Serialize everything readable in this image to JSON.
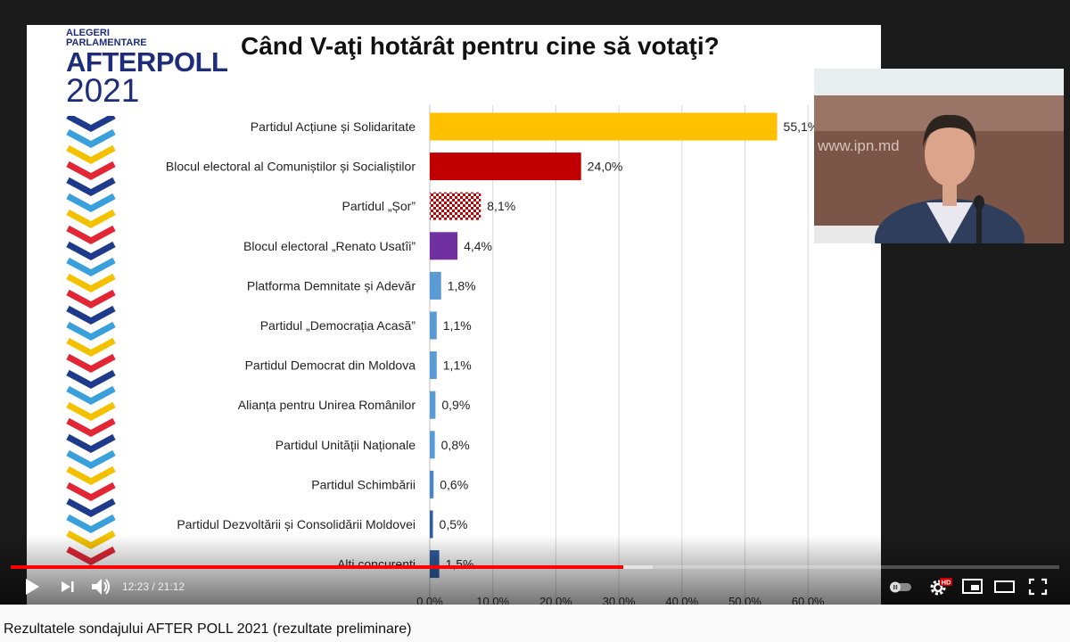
{
  "slide": {
    "logo_line1": "ALEGERI",
    "logo_line2": "PARLAMENTARE",
    "logo_brand": "AFTERPOLL",
    "logo_year": "2021",
    "title": "Când V-aţi hotărât pentru cine să votaţi?"
  },
  "chart_data": {
    "type": "bar",
    "orientation": "horizontal",
    "title": "Când V-aţi hotărât pentru cine să votaţi?",
    "categories": [
      "Partidul Acțiune și Solidaritate",
      "Blocul electoral al Comuniștilor și Socialiștilor",
      "Partidul „Șor”",
      "Blocul electoral „Renato Usatîi”",
      "Platforma Demnitate și Adevăr",
      "Partidul „Democrația Acasă”",
      "Partidul Democrat din Moldova",
      "Alianța pentru Unirea Românilor",
      "Partidul Unității Naționale",
      "Partidul Schimbării",
      "Partidul Dezvoltării și Consolidării Moldovei",
      "Alti concurenti"
    ],
    "values": [
      55.1,
      24.0,
      8.1,
      4.4,
      1.8,
      1.1,
      1.1,
      0.9,
      0.8,
      0.6,
      0.5,
      1.5
    ],
    "value_labels": [
      "55,1%",
      "24,0%",
      "8,1%",
      "4,4%",
      "1,8%",
      "1,1%",
      "1,1%",
      "0,9%",
      "0,8%",
      "0,6%",
      "0,5%",
      "1,5%"
    ],
    "colors": [
      "#ffc000",
      "#c00000",
      "checkered",
      "#7030a0",
      "#5b9bd5",
      "#5b9bd5",
      "#5b9bd5",
      "#5b9bd5",
      "#5b9bd5",
      "#4a86c5",
      "#2e5e9e",
      "#2e5e9e"
    ],
    "x_ticks": [
      "0,0%",
      "10,0%",
      "20,0%",
      "30,0%",
      "40,0%",
      "50,0%",
      "60,0%"
    ],
    "xlim": [
      0,
      60
    ],
    "grid": true
  },
  "player": {
    "time_label": "12:23 / 21:12",
    "progress_played": 0.584,
    "progress_buffered": 0.612,
    "hd_badge": "HD",
    "webcam_watermark": "www.ipn.md"
  },
  "video": {
    "title": "Rezultatele sondajului AFTER POLL 2021 (rezultate preliminare)"
  }
}
